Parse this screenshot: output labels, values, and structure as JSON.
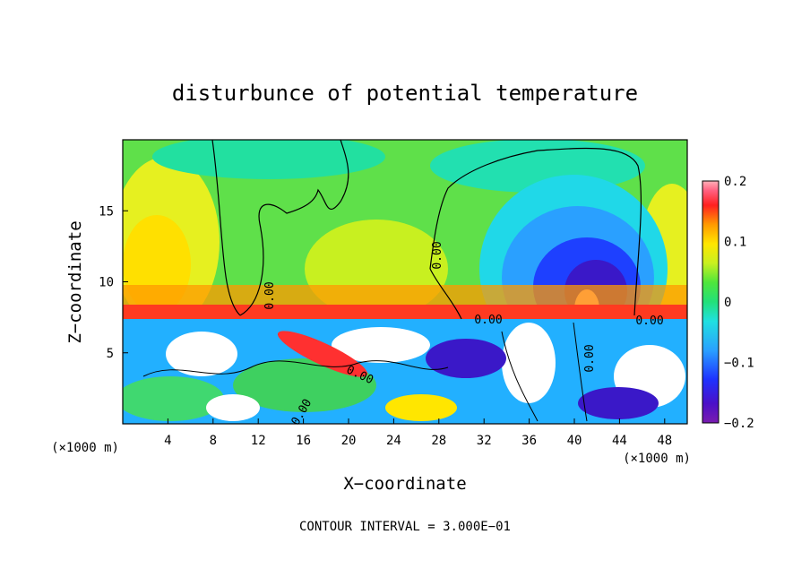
{
  "chart_data": {
    "type": "heatmap",
    "title": "disturbunce of potential temperature",
    "xlabel": "X−coordinate",
    "ylabel": "Z−coordinate",
    "x_unit_left": "(×1000 m)",
    "x_unit_right": "(×1000 m)",
    "xlim": [
      0,
      50
    ],
    "ylim": [
      0,
      20
    ],
    "x_ticks": [
      4,
      8,
      12,
      16,
      20,
      24,
      28,
      32,
      36,
      40,
      44,
      48
    ],
    "y_ticks": [
      5,
      10,
      15
    ],
    "colorbar": {
      "range": [
        -0.2,
        0.2
      ],
      "ticks": [
        0.2,
        0.1,
        0,
        -0.1,
        -0.2
      ],
      "tick_labels": [
        "0.2",
        "0.1",
        "0",
        "−0.1",
        "−0.2"
      ]
    },
    "contour_labels": [
      "0.00",
      "0.00",
      "0.00",
      "0.00",
      "0.00",
      "0.00",
      "0.00"
    ],
    "footer": "CONTOUR INTERVAL = 3.000E−01"
  }
}
